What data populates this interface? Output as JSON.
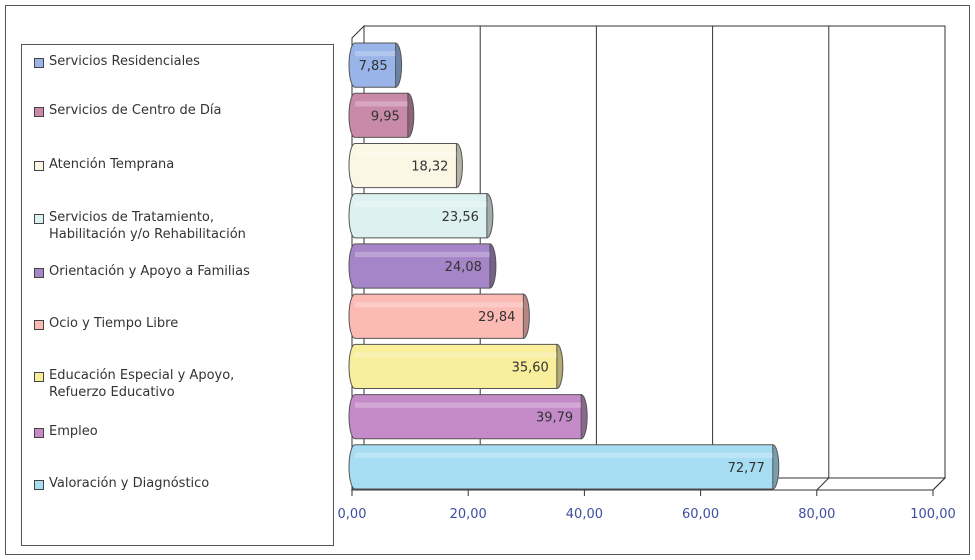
{
  "chart_data": {
    "type": "bar",
    "orientation": "horizontal",
    "categories": [
      "Servicios Residenciales",
      "Servicios de Centro de Día",
      "Atención Temprana",
      "Servicios de Tratamiento, Habilitación y/o Rehabilitación",
      "Orientación y Apoyo a Familias",
      "Ocio y Tiempo Libre",
      "Educación Especial y Apoyo, Refuerzo Educativo",
      "Empleo",
      "Valoración y Diagnóstico"
    ],
    "legend_lines": [
      [
        "Servicios Residenciales"
      ],
      [
        "Servicios de Centro de Día"
      ],
      [
        "Atención Temprana"
      ],
      [
        "Servicios de Tratamiento,",
        "Habilitación y/o Rehabilitación"
      ],
      [
        "Orientación y Apoyo a Familias"
      ],
      [
        "Ocio y Tiempo Libre"
      ],
      [
        "Educación Especial y Apoyo,",
        "Refuerzo Educativo"
      ],
      [
        "Empleo"
      ],
      [
        "Valoración y Diagnóstico"
      ]
    ],
    "values": [
      7.85,
      9.95,
      18.32,
      23.56,
      24.08,
      29.84,
      35.6,
      39.79,
      72.77
    ],
    "value_labels": [
      "7,85",
      "9,95",
      "18,32",
      "23,56",
      "24,08",
      "29,84",
      "35,60",
      "39,79",
      "72,77"
    ],
    "colors": [
      "#98B4E8",
      "#C88AA8",
      "#FCF7E4",
      "#DDF2F0",
      "#A585C8",
      "#FCBAB4",
      "#F8EE9C",
      "#C58BC8",
      "#A6DDF3"
    ],
    "x_ticks": [
      0,
      20,
      40,
      60,
      80,
      100
    ],
    "x_tick_labels": [
      "0,00",
      "20,00",
      "40,00",
      "60,00",
      "80,00",
      "100,00"
    ],
    "xlim": [
      0,
      100
    ],
    "grid": true,
    "legend_position": "left",
    "title": "",
    "xlabel": "",
    "ylabel": ""
  }
}
